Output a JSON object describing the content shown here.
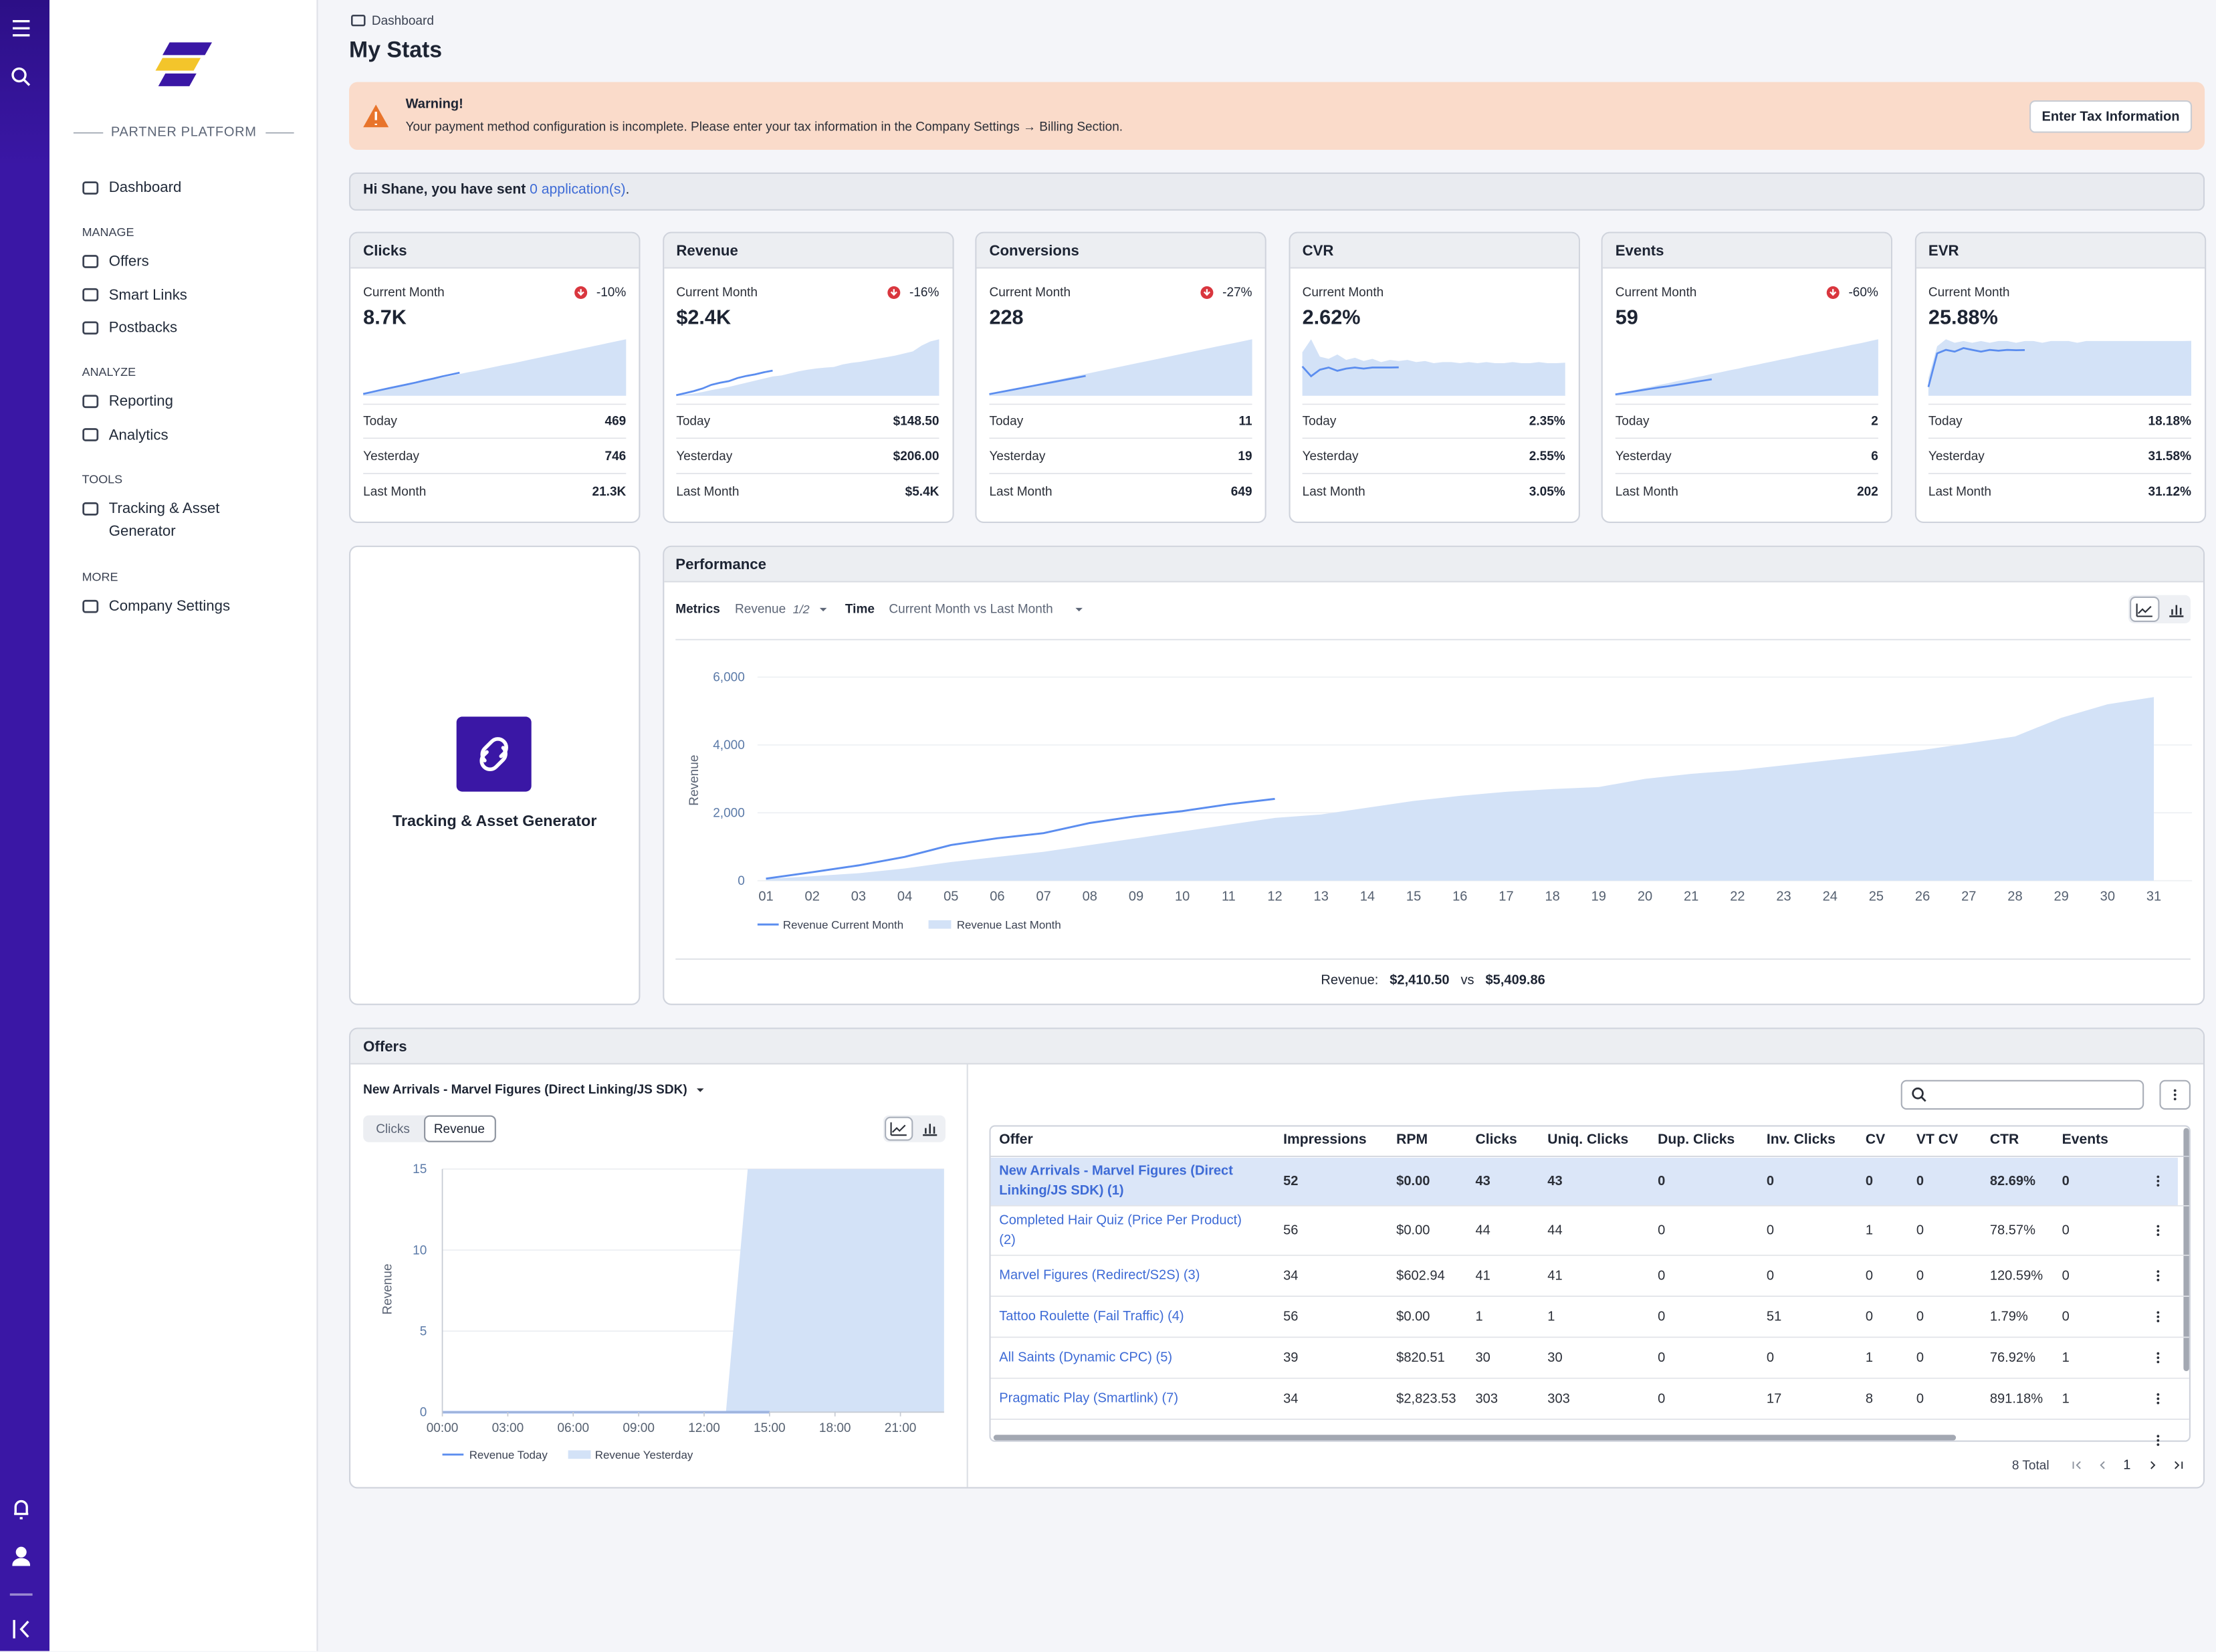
{
  "sidebar": {
    "brand": "PARTNER PLATFORM",
    "dashboard": "Dashboard",
    "groups": [
      {
        "heading": "MANAGE",
        "items": [
          "Offers",
          "Smart Links",
          "Postbacks"
        ]
      },
      {
        "heading": "ANALYZE",
        "items": [
          "Reporting",
          "Analytics"
        ]
      },
      {
        "heading": "TOOLS",
        "items": [
          "Tracking & Asset Generator"
        ]
      },
      {
        "heading": "MORE",
        "items": [
          "Company Settings"
        ]
      }
    ]
  },
  "header": {
    "breadcrumb": "Dashboard",
    "title": "My Stats"
  },
  "warning": {
    "title": "Warning!",
    "message": "Your payment method configuration is incomplete. Please enter your tax information in the Company Settings → Billing Section.",
    "button": "Enter Tax Information"
  },
  "greeting": {
    "text": "Hi Shane, you have sent ",
    "link": "0 application(s)",
    "end": "."
  },
  "stat_labels": {
    "current": "Current Month",
    "today": "Today",
    "yesterday": "Yesterday",
    "last_month": "Last Month"
  },
  "stats": [
    {
      "title": "Clicks",
      "value": "8.7K",
      "change": "-10%",
      "today": "469",
      "yesterday": "746",
      "last_month": "21.3K",
      "spark": {
        "current": [
          700,
          1450,
          2200,
          2900,
          3600,
          4300,
          5000,
          5800,
          6500,
          7300,
          8000,
          8700
        ],
        "last": [
          700,
          1400,
          2100,
          2800,
          3500,
          4200,
          4900,
          5600,
          6200,
          6900,
          7500,
          8200,
          8900,
          9500,
          10200,
          10900,
          11600,
          12200,
          12900,
          13600,
          14300,
          15000,
          15700,
          16400,
          17100,
          17800,
          18500,
          19200,
          19900,
          20600,
          21300
        ]
      }
    },
    {
      "title": "Revenue",
      "value": "$2.4K",
      "change": "-16%",
      "today": "$148.50",
      "yesterday": "$206.00",
      "last_month": "$5.4K",
      "spark": {
        "current": [
          60,
          250,
          450,
          700,
          1050,
          1250,
          1400,
          1700,
          1900,
          2050,
          2250,
          2410
        ],
        "last": [
          50,
          130,
          220,
          360,
          550,
          700,
          850,
          1050,
          1250,
          1450,
          1650,
          1850,
          1950,
          2150,
          2350,
          2500,
          2620,
          2700,
          2760,
          3000,
          3150,
          3250,
          3400,
          3550,
          3700,
          3850,
          4050,
          4250,
          4800,
          5200,
          5410
        ]
      }
    },
    {
      "title": "Conversions",
      "value": "228",
      "change": "-27%",
      "today": "11",
      "yesterday": "19",
      "last_month": "649",
      "spark": {
        "current": [
          19,
          38,
          57,
          76,
          95,
          114,
          133,
          152,
          171,
          190,
          209,
          228
        ],
        "last": [
          20,
          42,
          63,
          84,
          105,
          126,
          147,
          168,
          188,
          209,
          230,
          251,
          272,
          293,
          314,
          335,
          356,
          377,
          398,
          419,
          440,
          461,
          482,
          503,
          524,
          545,
          566,
          587,
          607,
          628,
          649
        ]
      }
    },
    {
      "title": "CVR",
      "value": "2.62%",
      "today": "2.35%",
      "yesterday": "2.55%",
      "last_month": "3.05%",
      "spark": {
        "current": [
          2.7,
          1.8,
          2.4,
          2.6,
          2.3,
          2.5,
          2.6,
          2.5,
          2.6,
          2.6,
          2.6,
          2.62
        ],
        "last": [
          4.0,
          5.2,
          3.6,
          3.4,
          3.8,
          3.3,
          3.5,
          3.2,
          3.4,
          3.1,
          3.3,
          3.2,
          3.3,
          3.1,
          3.2,
          3.0,
          3.1,
          3.1,
          3.0,
          3.1,
          3.0,
          3.1,
          3.0,
          3.0,
          3.1,
          3.0,
          3.0,
          3.1,
          3.0,
          3.0,
          3.05
        ]
      }
    },
    {
      "title": "Events",
      "value": "59",
      "change": "-60%",
      "today": "2",
      "yesterday": "6",
      "last_month": "202",
      "spark": {
        "current": [
          5,
          10,
          15,
          20,
          25,
          30,
          34,
          39,
          44,
          49,
          54,
          59
        ],
        "last": [
          6,
          13,
          19,
          26,
          32,
          39,
          45,
          52,
          58,
          65,
          71,
          78,
          84,
          91,
          97,
          104,
          110,
          117,
          123,
          130,
          136,
          143,
          149,
          156,
          162,
          169,
          175,
          182,
          188,
          195,
          202
        ]
      }
    },
    {
      "title": "EVR",
      "value": "25.88%",
      "today": "18.18%",
      "yesterday": "31.58%",
      "last_month": "31.12%",
      "spark": {
        "current": [
          5,
          24,
          26,
          25,
          27,
          26,
          25,
          26,
          25.5,
          26,
          25.8,
          25.88
        ],
        "last": [
          10,
          28,
          32,
          30,
          31,
          30,
          31,
          30,
          31,
          31,
          30,
          31,
          31,
          30,
          31,
          31,
          31,
          30,
          31,
          31,
          31,
          31,
          31,
          31,
          31,
          31,
          31,
          31,
          31,
          31,
          31.12
        ]
      }
    }
  ],
  "tracking_card": {
    "title": "Tracking & Asset Generator"
  },
  "performance": {
    "title": "Performance",
    "metrics_label": "Metrics",
    "metric": "Revenue",
    "metric_count": "1/2",
    "time_label": "Time",
    "time": "Current Month vs Last Month",
    "summary": {
      "label": "Revenue:",
      "current": "$2,410.50",
      "vs": "vs",
      "last": "$5,409.86"
    },
    "chart": {
      "type": "line",
      "y_label": "Revenue",
      "categories": [
        "01",
        "02",
        "03",
        "04",
        "05",
        "06",
        "07",
        "08",
        "09",
        "10",
        "11",
        "12",
        "13",
        "14",
        "15",
        "16",
        "17",
        "18",
        "19",
        "20",
        "21",
        "22",
        "23",
        "24",
        "25",
        "26",
        "27",
        "28",
        "29",
        "30",
        "31"
      ],
      "ylim": [
        0,
        6000
      ],
      "yticks": [
        0,
        {
          "value": 2000,
          "label": "2,000"
        },
        {
          "value": 4000,
          "label": "4,000"
        },
        {
          "value": 6000,
          "label": "6,000"
        }
      ],
      "grid": true,
      "series": [
        {
          "name": "Revenue Current Month",
          "type": "line",
          "color": "#5b8def",
          "values": [
            60,
            250,
            450,
            700,
            1050,
            1250,
            1400,
            1700,
            1900,
            2050,
            2250,
            2410
          ]
        },
        {
          "name": "Revenue Last Month",
          "type": "area",
          "color": "#d3e2f7",
          "values": [
            50,
            130,
            220,
            360,
            550,
            700,
            850,
            1050,
            1250,
            1450,
            1650,
            1850,
            1950,
            2150,
            2350,
            2500,
            2620,
            2700,
            2760,
            3000,
            3150,
            3250,
            3400,
            3550,
            3700,
            3850,
            4050,
            4250,
            4800,
            5200,
            5410
          ]
        }
      ]
    }
  },
  "offers": {
    "title": "Offers",
    "selected_offer": "New Arrivals - Marvel Figures (Direct Linking/JS SDK)",
    "toggle": [
      "Clicks",
      "Revenue"
    ],
    "chart": {
      "type": "line",
      "y_label": "Revenue",
      "xlim": [
        0,
        23
      ],
      "xticks": [
        {
          "value": 0,
          "label": "00:00"
        },
        {
          "value": 3,
          "label": "03:00"
        },
        {
          "value": 6,
          "label": "06:00"
        },
        {
          "value": 9,
          "label": "09:00"
        },
        {
          "value": 12,
          "label": "12:00"
        },
        {
          "value": 15,
          "label": "15:00"
        },
        {
          "value": 18,
          "label": "18:00"
        },
        {
          "value": 21,
          "label": "21:00"
        }
      ],
      "ylim": [
        0,
        15
      ],
      "yticks": [
        0,
        5,
        10,
        15
      ],
      "grid": true,
      "series": [
        {
          "name": "Revenue Today",
          "type": "line",
          "color": "#5b8def",
          "x": [
            0,
            1,
            2,
            3,
            4,
            5,
            6,
            7,
            8,
            9,
            10,
            11,
            12,
            13,
            14,
            15
          ],
          "values": [
            0,
            0,
            0,
            0,
            0,
            0,
            0,
            0,
            0,
            0,
            0,
            0,
            0,
            0,
            0,
            0
          ]
        },
        {
          "name": "Revenue Yesterday",
          "type": "area",
          "color": "#d3e2f7",
          "x": [
            0,
            1,
            2,
            3,
            4,
            5,
            6,
            7,
            8,
            9,
            10,
            11,
            12,
            13,
            14,
            15,
            16,
            17,
            18,
            19,
            20,
            21,
            22,
            23
          ],
          "values": [
            0,
            0,
            0,
            0,
            0,
            0,
            0,
            0,
            0,
            0,
            0,
            0,
            0,
            0,
            15,
            15,
            15,
            15,
            15,
            15,
            15,
            15,
            15,
            15
          ]
        }
      ]
    },
    "table": {
      "columns": [
        "Offer",
        "Impressions",
        "RPM",
        "Clicks",
        "Uniq. Clicks",
        "Dup. Clicks",
        "Inv. Clicks",
        "CV",
        "VT CV",
        "CTR",
        "Events"
      ],
      "rows": [
        [
          "New Arrivals - Marvel Figures (Direct Linking/JS SDK) (1)",
          52,
          "$0.00",
          43,
          43,
          0,
          0,
          0,
          0,
          "82.69%",
          0
        ],
        [
          "Completed Hair Quiz (Price Per Product) (2)",
          56,
          "$0.00",
          44,
          44,
          0,
          0,
          1,
          0,
          "78.57%",
          0
        ],
        [
          "Marvel Figures (Redirect/S2S) (3)",
          34,
          "$602.94",
          41,
          41,
          0,
          0,
          0,
          0,
          "120.59%",
          0
        ],
        [
          "Tattoo Roulette (Fail Traffic) (4)",
          56,
          "$0.00",
          1,
          1,
          0,
          51,
          0,
          0,
          "1.79%",
          0
        ],
        [
          "All Saints (Dynamic CPC) (5)",
          39,
          "$820.51",
          30,
          30,
          0,
          0,
          1,
          0,
          "76.92%",
          1
        ],
        [
          "Pragmatic Play (Smartlink) (7)",
          34,
          "$2,823.53",
          303,
          303,
          0,
          17,
          8,
          0,
          "891.18%",
          1
        ]
      ],
      "total": "8 Total",
      "page": 1
    }
  }
}
